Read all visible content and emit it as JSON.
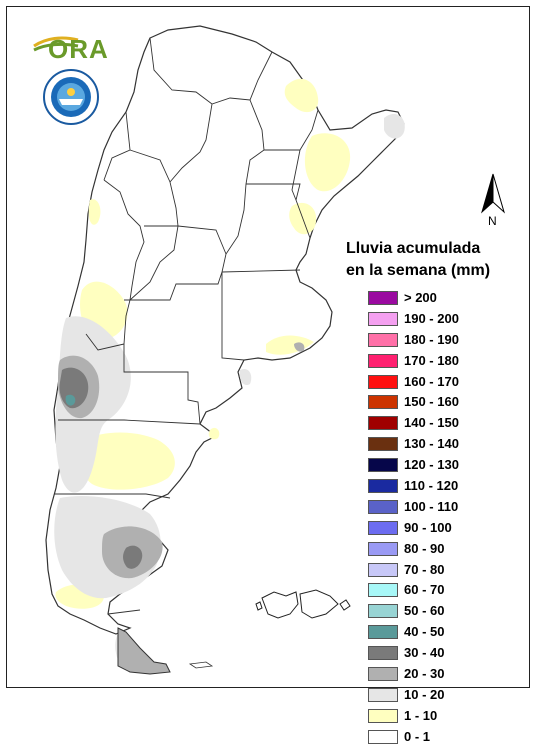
{
  "header": {
    "logo_text": "ORA",
    "seal_name": "servicio-meteorologico-nacional-seal"
  },
  "north_arrow": {
    "label": "N"
  },
  "legend": {
    "title_line1": "Lluvia acumulada",
    "title_line2": "en la semana (mm)",
    "items": [
      {
        "label": "> 200",
        "color": "#9a0aa0"
      },
      {
        "label": "190 - 200",
        "color": "#f4a0f0"
      },
      {
        "label": "180 - 190",
        "color": "#ff70a8"
      },
      {
        "label": "170 - 180",
        "color": "#ff2070"
      },
      {
        "label": "160 - 170",
        "color": "#ff1010"
      },
      {
        "label": "150 - 160",
        "color": "#cc3300"
      },
      {
        "label": "140 - 150",
        "color": "#a00000"
      },
      {
        "label": "130 - 140",
        "color": "#6a3010"
      },
      {
        "label": "120 - 130",
        "color": "#06064a"
      },
      {
        "label": "110 - 120",
        "color": "#1a2aa0"
      },
      {
        "label": "100 - 110",
        "color": "#5a62c8"
      },
      {
        "label": "90 - 100",
        "color": "#6c6cf0"
      },
      {
        "label": "80 - 90",
        "color": "#9a9af4"
      },
      {
        "label": "70 - 80",
        "color": "#c8c8f8"
      },
      {
        "label": "60 - 70",
        "color": "#a8f8f8"
      },
      {
        "label": "50 - 60",
        "color": "#98d4d4"
      },
      {
        "label": "40 - 50",
        "color": "#5a9a9a"
      },
      {
        "label": "30 - 40",
        "color": "#7a7a7a"
      },
      {
        "label": "20 - 30",
        "color": "#b0b0b0"
      },
      {
        "label": "10 - 20",
        "color": "#e6e6e6"
      },
      {
        "label": "1 - 10",
        "color": "#ffffc0"
      },
      {
        "label": "0 - 1",
        "color": "#ffffff"
      }
    ]
  }
}
